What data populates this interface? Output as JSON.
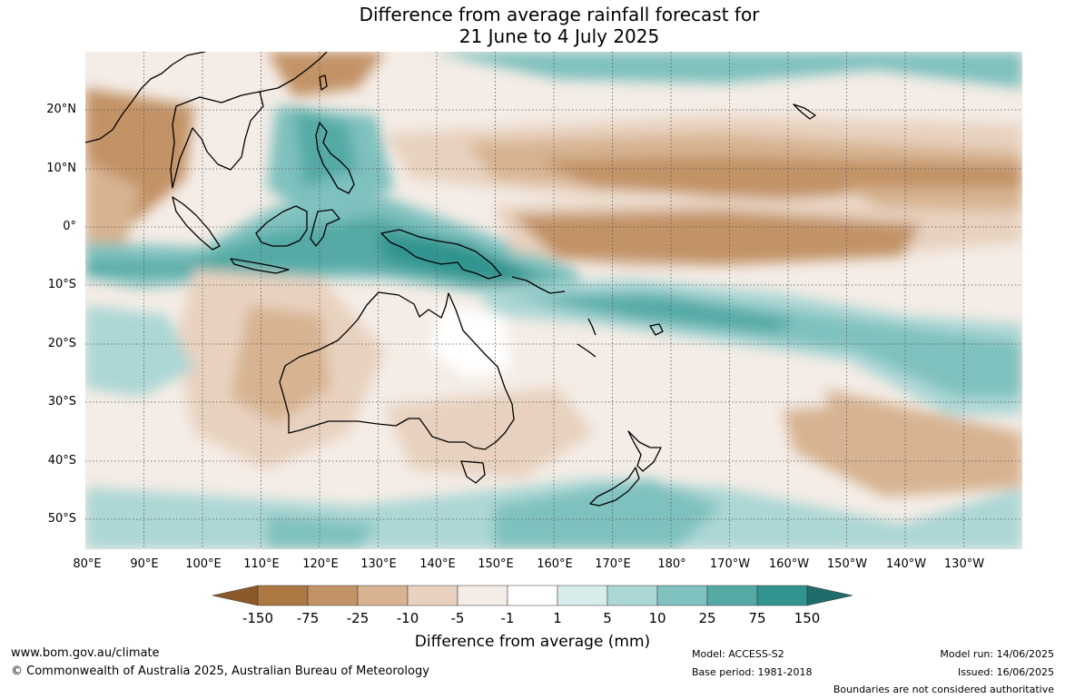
{
  "title_line1": "Difference from average rainfall forecast for",
  "title_line2": "21 June to 4 July 2025",
  "lat_labels": [
    "20°N",
    "10°N",
    "0°",
    "10°S",
    "20°S",
    "30°S",
    "40°S",
    "50°S"
  ],
  "lon_labels": [
    "80°E",
    "90°E",
    "100°E",
    "110°E",
    "120°E",
    "130°E",
    "140°E",
    "150°E",
    "160°E",
    "170°E",
    "180°",
    "170°W",
    "160°W",
    "150°W",
    "140°W",
    "130°W"
  ],
  "legend": {
    "ticks": [
      "-150",
      "-75",
      "-25",
      "-10",
      "-5",
      "-1",
      "1",
      "5",
      "10",
      "25",
      "75",
      "150"
    ],
    "colors": [
      "#8b5a2b",
      "#aa7840",
      "#c29366",
      "#d7b391",
      "#e8d2bf",
      "#f4ece6",
      "#ffffff",
      "#d7eceb",
      "#acd7d5",
      "#7fc1be",
      "#55aaa6",
      "#31948f",
      "#1f6d6a"
    ],
    "label": "Difference from average (mm)"
  },
  "footer": {
    "url": "www.bom.gov.au/climate",
    "copyright": "© Commonwealth of Australia 2025, Australian Bureau of Meteorology",
    "model": "Model: ACCESS-S2",
    "base_period": "Base period: 1981-2018",
    "model_run": "Model run: 14/06/2025",
    "issued": "Issued: 16/06/2025",
    "disclaimer": "Boundaries are not considered authoritative"
  }
}
